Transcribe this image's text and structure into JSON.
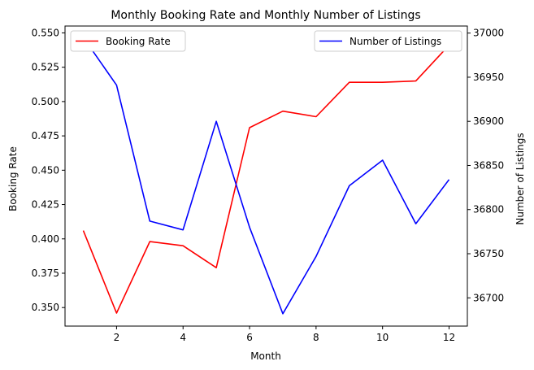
{
  "chart_data": {
    "type": "line",
    "title": "Monthly Booking Rate and Monthly Number of Listings",
    "xlabel": "Month",
    "ylabel_left": "Booking Rate",
    "ylabel_right": "Number of Listings",
    "x": [
      1,
      2,
      3,
      4,
      5,
      6,
      7,
      8,
      9,
      10,
      11,
      12
    ],
    "xticks": [
      2,
      4,
      6,
      8,
      10,
      12
    ],
    "xlim": [
      0.45,
      12.55
    ],
    "ylim_left": [
      0.3365,
      0.555
    ],
    "ylim_right": [
      36668,
      37008
    ],
    "yticks_left": [
      0.35,
      0.375,
      0.4,
      0.425,
      0.45,
      0.475,
      0.5,
      0.525,
      0.55
    ],
    "yticks_left_labels": [
      "0.350",
      "0.375",
      "0.400",
      "0.425",
      "0.450",
      "0.475",
      "0.500",
      "0.525",
      "0.550"
    ],
    "yticks_right": [
      36700,
      36750,
      36800,
      36850,
      36900,
      36950,
      37000
    ],
    "yticks_right_labels": [
      "36700",
      "36750",
      "36800",
      "36850",
      "36900",
      "36950",
      "37000"
    ],
    "series": [
      {
        "name": "Booking Rate",
        "axis": "left",
        "color": "#ff0000",
        "values": [
          0.406,
          0.346,
          0.398,
          0.395,
          0.379,
          0.481,
          0.493,
          0.489,
          0.514,
          0.514,
          0.515,
          0.541
        ]
      },
      {
        "name": "Number of Listings",
        "axis": "right",
        "color": "#0000ff",
        "values": [
          36995,
          36941,
          36787,
          36777,
          36900,
          36780,
          36682,
          36747,
          36827,
          36856,
          36784,
          36834
        ]
      }
    ],
    "legend_left": "upper-left",
    "legend_right": "upper-right",
    "grid": false
  }
}
